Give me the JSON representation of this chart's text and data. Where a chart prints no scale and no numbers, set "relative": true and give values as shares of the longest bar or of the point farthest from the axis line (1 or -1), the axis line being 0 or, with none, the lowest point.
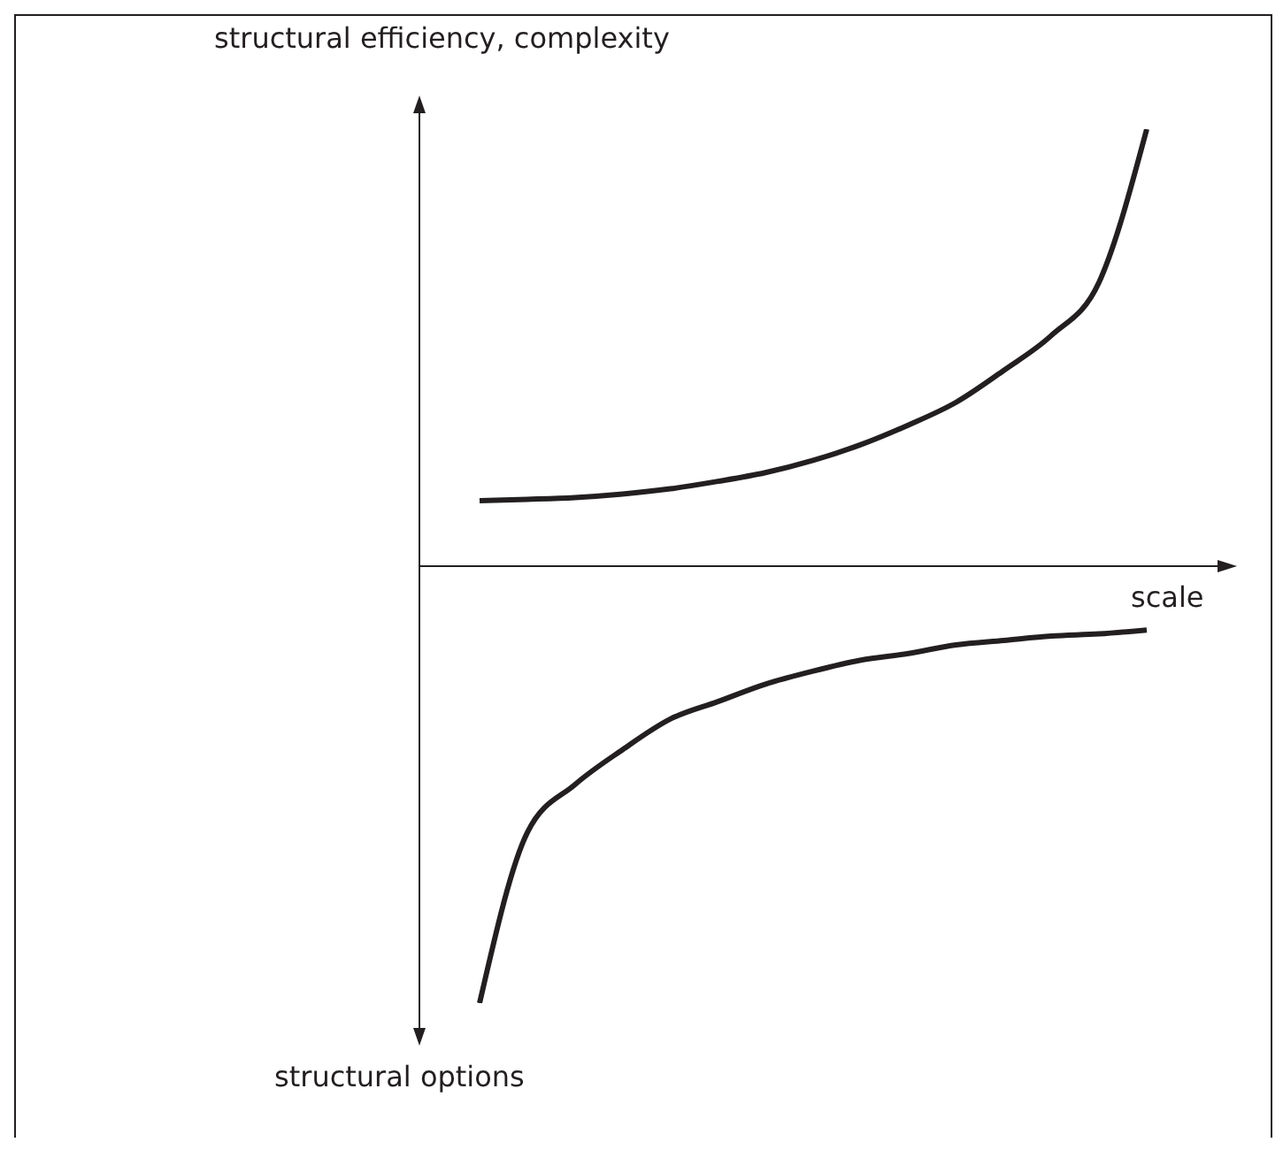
{
  "chart_data": {
    "type": "line",
    "relative": true,
    "ylabel": "structural efficiency, complexity",
    "xlabel": "scale",
    "annotations": [
      "structural options"
    ],
    "marker": "none",
    "line_style": "solid",
    "categories": [
      null,
      null,
      null,
      null,
      null,
      null,
      null,
      null,
      null,
      null,
      null,
      null,
      null,
      null,
      null
    ],
    "series": [
      {
        "color": "#231f20",
        "values": [
          0.15,
          0.153,
          0.157,
          0.165,
          0.177,
          0.194,
          0.214,
          0.242,
          0.278,
          0.323,
          0.375,
          0.448,
          0.528,
          0.65,
          1.0
        ]
      },
      {
        "color": "#231f20",
        "values": [
          -1.0,
          -0.61,
          -0.5,
          -0.42,
          -0.35,
          -0.31,
          -0.27,
          -0.24,
          -0.215,
          -0.2,
          -0.18,
          -0.17,
          -0.16,
          -0.155,
          -0.146
        ]
      }
    ]
  }
}
